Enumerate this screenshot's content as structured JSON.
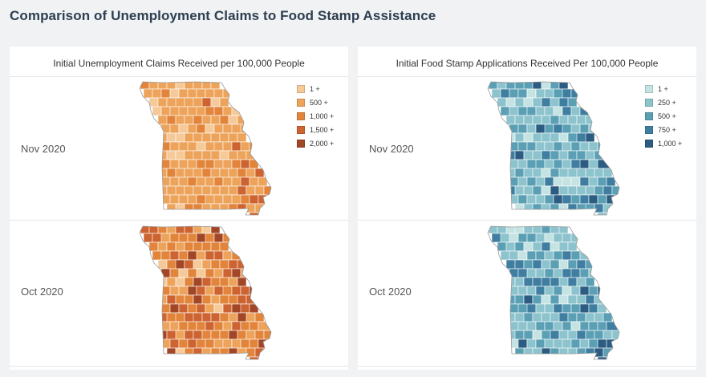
{
  "page": {
    "title": "Comparison of Unemployment Claims to Food Stamp Assistance"
  },
  "chart_data": [
    {
      "type": "choropleth",
      "title": "Initial Unemployment Claims Received per 100,000 People",
      "region": "Missouri counties",
      "rows": [
        "Nov 2020",
        "Oct 2020"
      ],
      "legend": [
        {
          "label": "1 +",
          "color": "#f6c999"
        },
        {
          "label": "500 +",
          "color": "#eda35a"
        },
        {
          "label": "1,000 +",
          "color": "#e2843a"
        },
        {
          "label": "1,500 +",
          "color": "#cc6330"
        },
        {
          "label": "2,000 +",
          "color": "#a34626"
        }
      ],
      "row_class_weights": {
        "Nov 2020": [
          0.12,
          0.7,
          0.14,
          0.04,
          0.0
        ],
        "Oct 2020": [
          0.06,
          0.22,
          0.4,
          0.24,
          0.08
        ]
      }
    },
    {
      "type": "choropleth",
      "title": "Initial Food Stamp Applications Received Per 100,000 People",
      "region": "Missouri counties",
      "rows": [
        "Nov 2020",
        "Oct 2020"
      ],
      "legend": [
        {
          "label": "1 +",
          "color": "#c4e3e2"
        },
        {
          "label": "250 +",
          "color": "#8cc3cd"
        },
        {
          "label": "500 +",
          "color": "#5b9fb5"
        },
        {
          "label": "750 +",
          "color": "#3f7ea0"
        },
        {
          "label": "1,000 +",
          "color": "#2c5c82"
        }
      ],
      "row_class_weights": {
        "Nov 2020": [
          0.1,
          0.4,
          0.34,
          0.13,
          0.03
        ],
        "Oct 2020": [
          0.08,
          0.44,
          0.3,
          0.15,
          0.03
        ]
      }
    }
  ]
}
